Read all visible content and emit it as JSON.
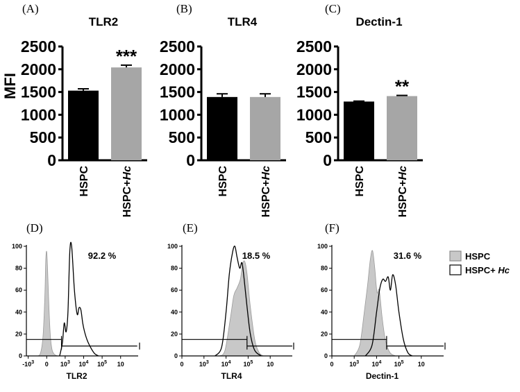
{
  "colors": {
    "bar_hspc": "#000000",
    "bar_hc": "#a6a6a6",
    "hist_fill": "#c8c8c8",
    "hist_line": "#000000"
  },
  "chart_data": [
    {
      "type": "bar",
      "panel": "(A)",
      "title": "TLR2",
      "ylabel": "MFI",
      "ylim": [
        0,
        2500
      ],
      "yticks": [
        "0",
        "500",
        "1000",
        "1500",
        "2000",
        "2500"
      ],
      "categories": [
        "HSPC",
        "HSPC+Hc"
      ],
      "category_parts": [
        [
          "HSPC",
          ""
        ],
        [
          "HSPC+",
          "Hc"
        ]
      ],
      "values": [
        1530,
        2040
      ],
      "errors": [
        40,
        50
      ],
      "significance": [
        "",
        "***"
      ]
    },
    {
      "type": "bar",
      "panel": "(B)",
      "title": "TLR4",
      "ylabel": "",
      "ylim": [
        0,
        2500
      ],
      "yticks": [
        "0",
        "500",
        "1000",
        "1500",
        "2000",
        "2500"
      ],
      "categories": [
        "HSPC",
        "HSPC+Hc"
      ],
      "category_parts": [
        [
          "HSPC",
          ""
        ],
        [
          "HSPC+",
          "Hc"
        ]
      ],
      "values": [
        1390,
        1390
      ],
      "errors": [
        70,
        70
      ],
      "significance": [
        "",
        ""
      ]
    },
    {
      "type": "bar",
      "panel": "(C)",
      "title": "Dectin-1",
      "ylabel": "",
      "ylim": [
        0,
        2500
      ],
      "yticks": [
        "0",
        "500",
        "1000",
        "1500",
        "2000",
        "2500"
      ],
      "categories": [
        "HSPC",
        "HSPC+Hc"
      ],
      "category_parts": [
        [
          "HSPC",
          ""
        ],
        [
          "HSPC+",
          "Hc"
        ]
      ],
      "values": [
        1290,
        1410
      ],
      "errors": [
        10,
        15
      ],
      "significance": [
        "",
        "**"
      ]
    },
    {
      "type": "area",
      "panel": "(D)",
      "xlabel": "TLR2",
      "percent": "92.2 %",
      "ylim": [
        0,
        100
      ],
      "yticks": [
        "0",
        "20",
        "40",
        "60",
        "80",
        "100"
      ],
      "xticks": [
        "-10",
        "0",
        "10",
        "10",
        "10",
        "10"
      ],
      "xtick_exponents": [
        "3",
        "",
        "3",
        "4",
        "5",
        ""
      ],
      "xlim": [
        -1.1,
        4.95
      ],
      "xtick_positions": [
        -1,
        0,
        1,
        2,
        3,
        4
      ],
      "gate": {
        "start": 0.8,
        "end": 4.9,
        "level": 9
      },
      "gate_left": {
        "start": -1.1,
        "end": 0.8,
        "level": 15
      },
      "hspc": {
        "x": [
          -0.6,
          -0.35,
          -0.2,
          -0.1,
          -0.05,
          0.0,
          0.05,
          0.12,
          0.2,
          0.3,
          0.45,
          0.6
        ],
        "y": [
          0,
          2,
          18,
          55,
          88,
          95,
          78,
          45,
          18,
          5,
          1,
          0
        ]
      },
      "hc": {
        "x": [
          0.7,
          0.85,
          0.95,
          1.05,
          1.15,
          1.25,
          1.35,
          1.5,
          1.65,
          1.75,
          1.85,
          1.95,
          2.05,
          2.2,
          2.4,
          2.6,
          2.8
        ],
        "y": [
          0,
          12,
          30,
          22,
          40,
          95,
          100,
          60,
          38,
          44,
          42,
          30,
          22,
          14,
          7,
          2,
          0
        ]
      }
    },
    {
      "type": "area",
      "panel": "(E)",
      "xlabel": "TLR4",
      "percent": "18.5 %",
      "ylim": [
        0,
        100
      ],
      "yticks": [
        "0",
        "20",
        "40",
        "60",
        "80",
        "100"
      ],
      "xticks": [
        "0",
        "10",
        "10",
        "10",
        "10"
      ],
      "xtick_exponents": [
        "",
        "3",
        "4",
        "5",
        ""
      ],
      "xlim": [
        0,
        5
      ],
      "xtick_positions": [
        0,
        1,
        2,
        3,
        4
      ],
      "gate": {
        "start": 2.95,
        "end": 5,
        "level": 9
      },
      "gate_left": {
        "start": 0,
        "end": 2.95,
        "level": 15
      },
      "hspc": {
        "x": [
          1.7,
          1.95,
          2.2,
          2.35,
          2.5,
          2.65,
          2.75,
          2.85,
          2.95,
          3.1,
          3.3,
          3.5,
          3.7
        ],
        "y": [
          0,
          5,
          35,
          55,
          62,
          70,
          84,
          86,
          75,
          45,
          15,
          3,
          0
        ]
      },
      "hc": {
        "x": [
          1.5,
          1.8,
          2.0,
          2.15,
          2.3,
          2.4,
          2.5,
          2.62,
          2.72,
          2.82,
          2.95,
          3.1,
          3.3,
          3.6
        ],
        "y": [
          0,
          8,
          40,
          75,
          95,
          100,
          90,
          80,
          85,
          70,
          45,
          20,
          5,
          0
        ]
      }
    },
    {
      "type": "area",
      "panel": "(F)",
      "xlabel": "Dectin-1",
      "percent": "31.6 %",
      "ylim": [
        0,
        100
      ],
      "yticks": [
        "0",
        "20",
        "40",
        "60",
        "80",
        "100"
      ],
      "xticks": [
        "0",
        "10",
        "10",
        "10",
        "10"
      ],
      "xtick_exponents": [
        "",
        "3",
        "4",
        "5",
        ""
      ],
      "xlim": [
        0,
        5
      ],
      "xtick_positions": [
        0,
        1,
        2,
        3,
        4
      ],
      "gate": {
        "start": 2.45,
        "end": 5,
        "level": 9
      },
      "gate_left": {
        "start": 0,
        "end": 2.45,
        "level": 15
      },
      "hspc": {
        "x": [
          1.0,
          1.25,
          1.45,
          1.6,
          1.72,
          1.82,
          1.92,
          2.02,
          2.12,
          2.25,
          2.4,
          2.6,
          2.85
        ],
        "y": [
          0,
          10,
          40,
          65,
          88,
          96,
          80,
          58,
          60,
          35,
          14,
          3,
          0
        ]
      },
      "hc": {
        "x": [
          1.5,
          1.8,
          2.0,
          2.15,
          2.28,
          2.4,
          2.52,
          2.62,
          2.72,
          2.85,
          3.0,
          3.2,
          3.4,
          3.6
        ],
        "y": [
          0,
          10,
          40,
          62,
          70,
          68,
          72,
          60,
          74,
          65,
          40,
          15,
          3,
          0
        ]
      }
    }
  ],
  "legend": {
    "items": [
      {
        "label": "HSPC",
        "italic": ""
      },
      {
        "label": "HSPC+ ",
        "italic": "Hc"
      }
    ]
  }
}
